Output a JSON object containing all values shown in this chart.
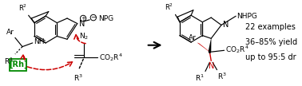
{
  "figsize": [
    3.78,
    1.08
  ],
  "dpi": 100,
  "bg_color": "#ffffff",
  "red_color": "#cc0000",
  "green_edge": "#008800",
  "green_text": "#008800",
  "stats": [
    "22 examples",
    "36–85% yield",
    "up to 95:5 dr"
  ],
  "stats_fontsize": 7.0,
  "lw": 0.85
}
